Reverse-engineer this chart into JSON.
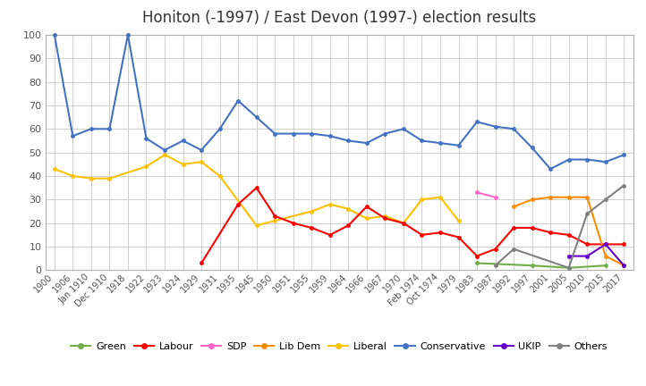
{
  "title": "Honiton (-1997) / East Devon (1997-) election results",
  "background_color": "#ffffff",
  "grid_color": "#d0d0d0",
  "series": {
    "Conservative": {
      "color": "#4472c4",
      "data": {
        "1900": 100,
        "1906": 57,
        "Jan 1910": 60,
        "Dec 1910": 60,
        "1918": 100,
        "1922": 56,
        "1923": 51,
        "1924": 55,
        "1929": 51,
        "1931": 60,
        "1935": 72,
        "1945": 65,
        "1950": 58,
        "1951": 58,
        "1955": 58,
        "1959": 57,
        "1964": 55,
        "1966": 54,
        "1967": 58,
        "1970": 60,
        "Feb 1974": 55,
        "Oct 1974": 54,
        "1979": 53,
        "1983": 63,
        "1987": 61,
        "1992": 60,
        "1997": 52,
        "2001": 43,
        "2005": 47,
        "2010": 47,
        "2015": 46,
        "2017": 49
      }
    },
    "Liberal": {
      "color": "#ffc000",
      "data": {
        "1900": 43,
        "1906": 40,
        "Jan 1910": 39,
        "Dec 1910": 39,
        "1922": 44,
        "1923": 49,
        "1924": 45,
        "1929": 46,
        "1931": 40,
        "1945": 19,
        "1950": 21,
        "1955": 25,
        "1959": 28,
        "1964": 26,
        "1966": 22,
        "1967": 23,
        "1970": 20,
        "Feb 1974": 30,
        "Oct 1974": 31,
        "1979": 21
      }
    },
    "Labour": {
      "color": "#ff0000",
      "data": {
        "1929": 3,
        "1935": 28,
        "1945": 35,
        "1950": 23,
        "1951": 20,
        "1955": 18,
        "1959": 15,
        "1964": 19,
        "1966": 27,
        "1967": 22,
        "1970": 20,
        "Feb 1974": 15,
        "Oct 1974": 16,
        "1979": 14,
        "1983": 6,
        "1987": 9,
        "1992": 18,
        "1997": 18,
        "2001": 16,
        "2005": 15,
        "2010": 11,
        "2015": 11,
        "2017": 11
      }
    },
    "Lib Dem": {
      "color": "#ff8c00",
      "data": {
        "1992": 27,
        "1997": 30,
        "2001": 31,
        "2005": 31,
        "2010": 31,
        "2015": 6,
        "2017": 2
      }
    },
    "SDP": {
      "color": "#ff66cc",
      "data": {
        "1983": 33,
        "1987": 31
      }
    },
    "UKIP": {
      "color": "#6600cc",
      "data": {
        "2005": 6,
        "2010": 6,
        "2015": 11,
        "2017": 2
      }
    },
    "Green": {
      "color": "#70ad47",
      "data": {
        "1983": 3,
        "1997": 2,
        "2005": 1,
        "2015": 2
      }
    },
    "Others": {
      "color": "#808080",
      "data": {
        "1987": 2,
        "1992": 9,
        "2005": 1,
        "2010": 24,
        "2015": 30,
        "2017": 36
      }
    }
  },
  "x_order": [
    "1900",
    "1906",
    "Jan 1910",
    "Dec 1910",
    "1918",
    "1922",
    "1923",
    "1924",
    "1929",
    "1931",
    "1935",
    "1945",
    "1950",
    "1951",
    "1955",
    "1959",
    "1964",
    "1966",
    "1967",
    "1970",
    "Feb 1974",
    "Oct 1974",
    "1979",
    "1983",
    "1987",
    "1992",
    "1997",
    "2001",
    "2005",
    "2010",
    "2015",
    "2017"
  ],
  "ylim": [
    0,
    100
  ],
  "yticks": [
    0,
    10,
    20,
    30,
    40,
    50,
    60,
    70,
    80,
    90,
    100
  ],
  "title_fontsize": 12,
  "tick_fontsize": 7,
  "legend_order": [
    "Green",
    "Labour",
    "SDP",
    "Lib Dem",
    "Liberal",
    "Conservative",
    "UKIP",
    "Others"
  ]
}
